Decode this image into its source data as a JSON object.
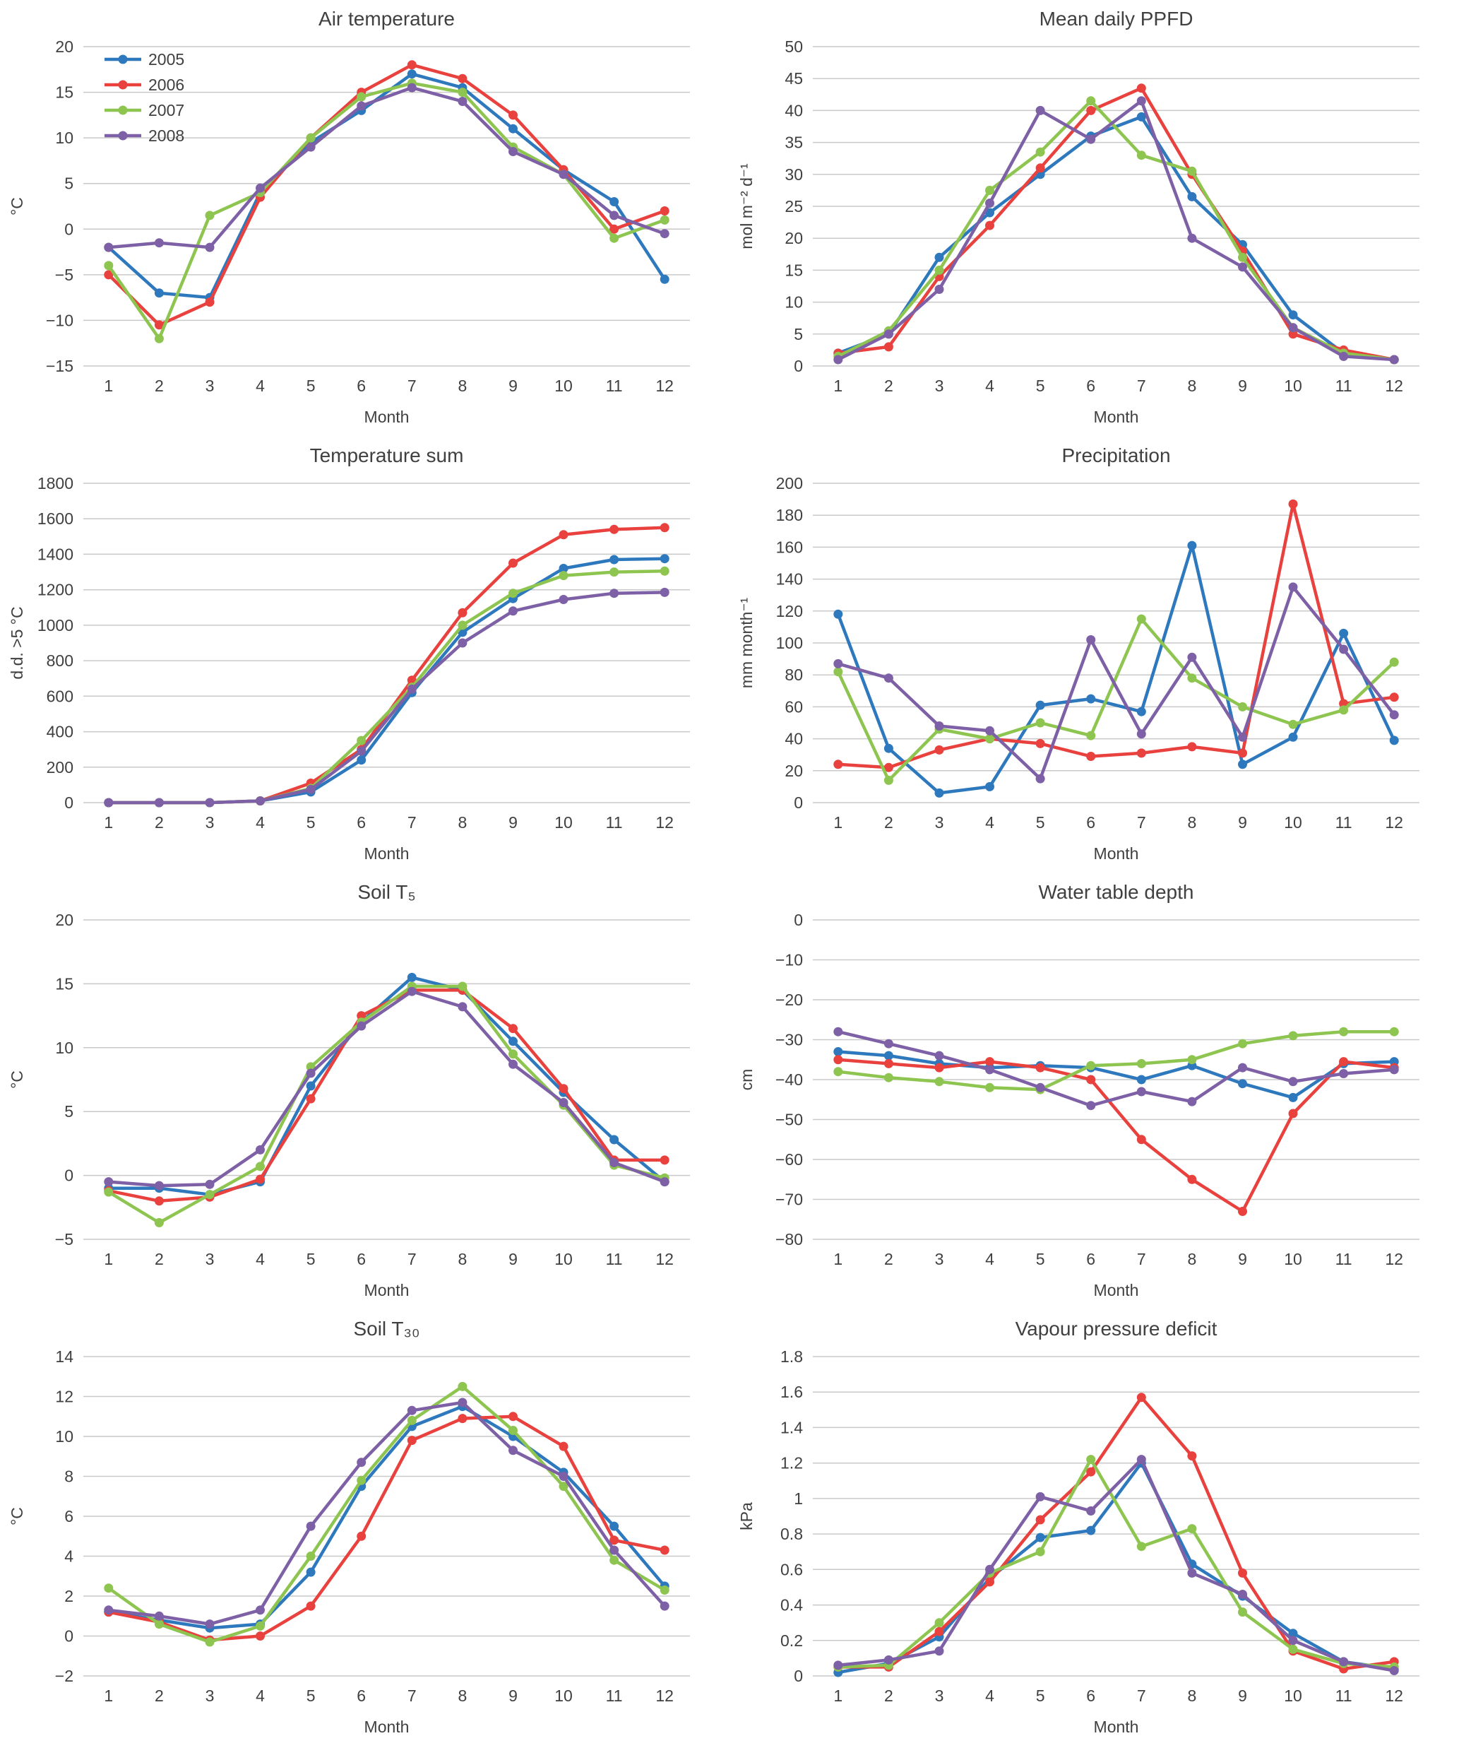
{
  "figure": {
    "xlabel": "Month",
    "months": [
      1,
      2,
      3,
      4,
      5,
      6,
      7,
      8,
      9,
      10,
      11,
      12
    ]
  },
  "series_meta": {
    "names": [
      "2005",
      "2006",
      "2007",
      "2008"
    ],
    "colors": [
      "#2e79bd",
      "#e8413e",
      "#8ec550",
      "#7d60a5"
    ]
  },
  "chart_data": [
    {
      "type": "line",
      "id": "air-temperature",
      "title": "Air temperature",
      "ylabel": "°C",
      "xlabel": "Month",
      "x": [
        1,
        2,
        3,
        4,
        5,
        6,
        7,
        8,
        9,
        10,
        11,
        12
      ],
      "ylim": [
        -15,
        20
      ],
      "ytick": 5,
      "legend": true,
      "legend_position": "top-left-inside",
      "series": [
        {
          "name": "2005",
          "values": [
            -2,
            -7,
            -7.5,
            4,
            9.5,
            13,
            17,
            15.5,
            11,
            6.5,
            3,
            -5.5
          ]
        },
        {
          "name": "2006",
          "values": [
            -5,
            -10.5,
            -8,
            3.5,
            10,
            15,
            18,
            16.5,
            12.5,
            6.5,
            0,
            2
          ]
        },
        {
          "name": "2007",
          "values": [
            -4,
            -12,
            1.5,
            4,
            10,
            14.5,
            16,
            15,
            9,
            6,
            -1,
            1
          ]
        },
        {
          "name": "2008",
          "values": [
            -2,
            -1.5,
            -2,
            4.5,
            9,
            13.5,
            15.5,
            14,
            8.5,
            6,
            1.5,
            -0.5
          ]
        }
      ]
    },
    {
      "type": "line",
      "id": "mean-daily-ppfd",
      "title": "Mean daily PPFD",
      "ylabel": "mol m⁻² d⁻¹",
      "xlabel": "Month",
      "x": [
        1,
        2,
        3,
        4,
        5,
        6,
        7,
        8,
        9,
        10,
        11,
        12
      ],
      "ylim": [
        0,
        50
      ],
      "ytick": 5,
      "legend": false,
      "series": [
        {
          "name": "2005",
          "values": [
            2,
            5,
            17,
            24,
            30,
            36,
            39,
            26.5,
            19,
            8,
            2,
            1
          ]
        },
        {
          "name": "2006",
          "values": [
            2,
            3,
            14,
            22,
            31,
            40,
            43.5,
            30,
            18,
            5,
            2.5,
            1
          ]
        },
        {
          "name": "2007",
          "values": [
            1.5,
            5.5,
            15,
            27.5,
            33.5,
            41.5,
            33,
            30.5,
            17,
            6,
            2,
            1
          ]
        },
        {
          "name": "2008",
          "values": [
            1,
            5,
            12,
            25.5,
            40,
            35.5,
            41.5,
            20,
            15.5,
            6,
            1.5,
            1
          ]
        }
      ]
    },
    {
      "type": "line",
      "id": "temperature-sum",
      "title": "Temperature sum",
      "ylabel": "d.d. >5 °C",
      "xlabel": "Month",
      "x": [
        1,
        2,
        3,
        4,
        5,
        6,
        7,
        8,
        9,
        10,
        11,
        12
      ],
      "ylim": [
        0,
        1800
      ],
      "ytick": 200,
      "legend": false,
      "series": [
        {
          "name": "2005",
          "values": [
            0,
            0,
            0,
            10,
            60,
            240,
            620,
            960,
            1150,
            1320,
            1370,
            1375
          ]
        },
        {
          "name": "2006",
          "values": [
            0,
            0,
            0,
            10,
            110,
            300,
            690,
            1070,
            1350,
            1510,
            1540,
            1550
          ]
        },
        {
          "name": "2007",
          "values": [
            0,
            0,
            0,
            10,
            80,
            350,
            650,
            1000,
            1180,
            1280,
            1300,
            1305
          ]
        },
        {
          "name": "2008",
          "values": [
            0,
            0,
            0,
            10,
            75,
            290,
            640,
            900,
            1080,
            1145,
            1180,
            1185
          ]
        }
      ]
    },
    {
      "type": "line",
      "id": "precipitation",
      "title": "Precipitation",
      "ylabel": "mm month⁻¹",
      "xlabel": "Month",
      "x": [
        1,
        2,
        3,
        4,
        5,
        6,
        7,
        8,
        9,
        10,
        11,
        12
      ],
      "ylim": [
        0,
        200
      ],
      "ytick": 20,
      "legend": false,
      "series": [
        {
          "name": "2005",
          "values": [
            118,
            34,
            6,
            10,
            61,
            65,
            57,
            161,
            24,
            41,
            106,
            39
          ]
        },
        {
          "name": "2006",
          "values": [
            24,
            22,
            33,
            40,
            37,
            29,
            31,
            35,
            31,
            187,
            62,
            66
          ]
        },
        {
          "name": "2007",
          "values": [
            82,
            14,
            46,
            40,
            50,
            42,
            115,
            78,
            60,
            49,
            58,
            88
          ]
        },
        {
          "name": "2008",
          "values": [
            87,
            78,
            48,
            45,
            15,
            102,
            43,
            91,
            41,
            135,
            96,
            55
          ]
        }
      ]
    },
    {
      "type": "line",
      "id": "soil-t5",
      "title": "Soil T₅",
      "ylabel": "°C",
      "xlabel": "Month",
      "x": [
        1,
        2,
        3,
        4,
        5,
        6,
        7,
        8,
        9,
        10,
        11,
        12
      ],
      "ylim": [
        -5,
        20
      ],
      "ytick": 5,
      "legend": false,
      "series": [
        {
          "name": "2005",
          "values": [
            -1,
            -1,
            -1.5,
            -0.5,
            7,
            12,
            15.5,
            14.5,
            10.5,
            6.5,
            2.8,
            -0.5
          ]
        },
        {
          "name": "2006",
          "values": [
            -1.2,
            -2,
            -1.7,
            -0.3,
            6,
            12.5,
            14.5,
            14.5,
            11.5,
            6.8,
            1.2,
            1.2
          ]
        },
        {
          "name": "2007",
          "values": [
            -1.3,
            -3.7,
            -1.5,
            0.7,
            8.5,
            12,
            14.8,
            14.8,
            9.5,
            5.5,
            0.8,
            -0.2
          ]
        },
        {
          "name": "2008",
          "values": [
            -0.5,
            -0.8,
            -0.7,
            2,
            8,
            11.7,
            14.4,
            13.2,
            8.7,
            5.7,
            1,
            -0.5
          ]
        }
      ]
    },
    {
      "type": "line",
      "id": "water-table-depth",
      "title": "Water table depth",
      "ylabel": "cm",
      "xlabel": "Month",
      "x": [
        1,
        2,
        3,
        4,
        5,
        6,
        7,
        8,
        9,
        10,
        11,
        12
      ],
      "ylim": [
        -80,
        0
      ],
      "ytick": 10,
      "legend": false,
      "series": [
        {
          "name": "2005",
          "values": [
            -33,
            -34,
            -36,
            -37,
            -36.5,
            -37,
            -40,
            -36.5,
            -41,
            -44.5,
            -36,
            -35.5
          ]
        },
        {
          "name": "2006",
          "values": [
            -35,
            -36,
            -37,
            -35.5,
            -37,
            -40,
            -55,
            -65,
            -73,
            -48.5,
            -35.5,
            -37
          ]
        },
        {
          "name": "2007",
          "values": [
            -38,
            -39.5,
            -40.5,
            -42,
            -42.5,
            -36.5,
            -36,
            -35,
            -31,
            -29,
            -28,
            -28
          ]
        },
        {
          "name": "2008",
          "values": [
            -28,
            -31,
            -34,
            -37.5,
            -42,
            -46.5,
            -43,
            -45.5,
            -37,
            -40.5,
            -38.5,
            -37.5
          ]
        }
      ]
    },
    {
      "type": "line",
      "id": "soil-t30",
      "title": "Soil T₃₀",
      "ylabel": "°C",
      "xlabel": "Month",
      "x": [
        1,
        2,
        3,
        4,
        5,
        6,
        7,
        8,
        9,
        10,
        11,
        12
      ],
      "ylim": [
        -2,
        14
      ],
      "ytick": 2,
      "legend": false,
      "series": [
        {
          "name": "2005",
          "values": [
            1.2,
            0.8,
            0.4,
            0.6,
            3.2,
            7.5,
            10.5,
            11.5,
            10,
            8.2,
            5.5,
            2.5
          ]
        },
        {
          "name": "2006",
          "values": [
            1.2,
            0.7,
            -0.2,
            0,
            1.5,
            5,
            9.8,
            10.9,
            11,
            9.5,
            4.8,
            4.3
          ]
        },
        {
          "name": "2007",
          "values": [
            2.4,
            0.6,
            -0.3,
            0.5,
            4,
            7.8,
            10.8,
            12.5,
            10.3,
            7.5,
            3.8,
            2.3
          ]
        },
        {
          "name": "2008",
          "values": [
            1.3,
            1,
            0.6,
            1.3,
            5.5,
            8.7,
            11.3,
            11.7,
            9.3,
            8,
            4.3,
            1.5
          ]
        }
      ]
    },
    {
      "type": "line",
      "id": "vapour-pressure-deficit",
      "title": "Vapour pressure deficit",
      "ylabel": "kPa",
      "xlabel": "Month",
      "x": [
        1,
        2,
        3,
        4,
        5,
        6,
        7,
        8,
        9,
        10,
        11,
        12
      ],
      "ylim": [
        0,
        1.8
      ],
      "ytick": 0.2,
      "legend": false,
      "series": [
        {
          "name": "2005",
          "values": [
            0.02,
            0.07,
            0.22,
            0.55,
            0.78,
            0.82,
            1.2,
            0.63,
            0.45,
            0.24,
            0.08,
            0.04
          ]
        },
        {
          "name": "2006",
          "values": [
            0.05,
            0.05,
            0.25,
            0.53,
            0.88,
            1.15,
            1.57,
            1.24,
            0.58,
            0.14,
            0.04,
            0.08
          ]
        },
        {
          "name": "2007",
          "values": [
            0.05,
            0.06,
            0.3,
            0.58,
            0.7,
            1.22,
            0.73,
            0.83,
            0.36,
            0.15,
            0.07,
            0.05
          ]
        },
        {
          "name": "2008",
          "values": [
            0.06,
            0.09,
            0.14,
            0.6,
            1.01,
            0.93,
            1.22,
            0.58,
            0.46,
            0.2,
            0.08,
            0.03
          ]
        }
      ]
    }
  ]
}
